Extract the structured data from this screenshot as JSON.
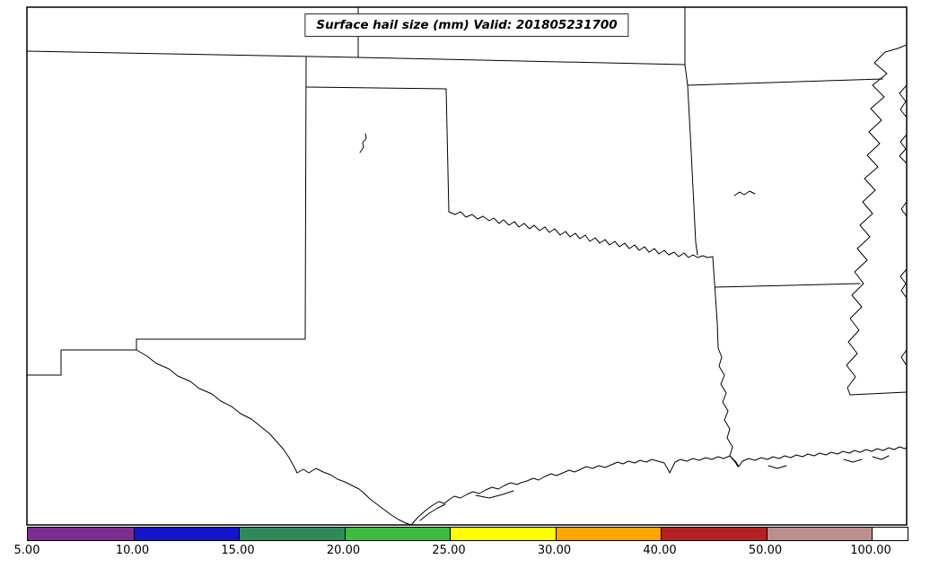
{
  "figure": {
    "title": "Surface hail size (mm) Valid: 201805231700"
  },
  "chart_data": {
    "type": "map",
    "title": "Surface hail size (mm) Valid: 201805231700",
    "variable": "Surface hail size",
    "units": "mm",
    "valid_time": "201805231700",
    "shaded_regions": "none visible (map area shows only state boundaries, rivers and coastline)",
    "colorbar": {
      "orientation": "horizontal",
      "position": "bottom",
      "levels": [
        5,
        10,
        15,
        20,
        25,
        30,
        40,
        50,
        100
      ],
      "tick_labels": [
        "5.00",
        "10.00",
        "15.00",
        "20.00",
        "25.00",
        "30.00",
        "40.00",
        "50.00",
        "100.00"
      ],
      "segment_colors": [
        "#7B2E8E",
        "#1414CC",
        "#2E8B57",
        "#3CBB3C",
        "#FFFF00",
        "#FFA500",
        "#B22222",
        "#BC8F8F",
        "#FFFFFF"
      ]
    }
  }
}
